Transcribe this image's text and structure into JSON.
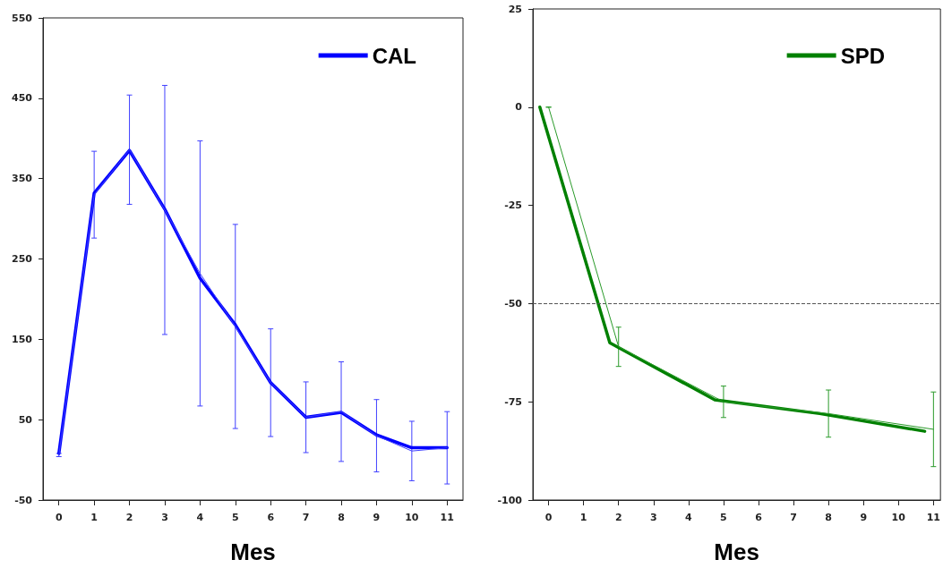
{
  "chart_data": [
    {
      "type": "line",
      "xlabel": "Mes",
      "xlim": [
        -0.45,
        11.45
      ],
      "xticks": [
        0,
        1,
        2,
        3,
        4,
        5,
        6,
        7,
        8,
        9,
        10,
        11
      ],
      "ylim": [
        -50,
        550
      ],
      "yticks": [
        -50,
        50,
        150,
        250,
        350,
        450,
        550
      ],
      "grid": false,
      "legend": "top right",
      "marker": "none",
      "line_style": "solid",
      "series": [
        {
          "name": "CAL",
          "color": "#0000ff",
          "x": [
            0,
            1,
            2,
            3,
            4,
            5,
            6,
            7,
            8,
            9,
            10,
            11
          ],
          "values": [
            8,
            332,
            385,
            312,
            226,
            168,
            96,
            53,
            59,
            31,
            15,
            15
          ]
        },
        {
          "color": "#4040ff",
          "x": [
            0,
            1,
            2,
            3,
            4,
            5,
            6,
            7,
            8,
            9,
            10,
            11
          ],
          "values": [
            6,
            330,
            386,
            311,
            232,
            166,
            96,
            53,
            60,
            30,
            11,
            15
          ],
          "errors": [
            2,
            54,
            68,
            155,
            165,
            127,
            67,
            44,
            62,
            45,
            37,
            45
          ]
        }
      ]
    },
    {
      "type": "line",
      "xlabel": "Mes",
      "xlim": [
        -0.45,
        11.2
      ],
      "xticks": [
        0,
        1,
        2,
        3,
        4,
        5,
        6,
        7,
        8,
        9,
        10,
        11
      ],
      "ylim": [
        -100,
        25
      ],
      "yticks": [
        -100,
        -75,
        -50,
        -25,
        0,
        25
      ],
      "grid": false,
      "legend": "top right",
      "marker": "none",
      "line_style": "solid",
      "ref_lines": [
        {
          "axis": "y",
          "value": -50,
          "color": "#555555",
          "line_style": "dashed"
        }
      ],
      "series": [
        {
          "name": "SPD",
          "color": "#008000",
          "x": [
            -0.25,
            1.75,
            4.75,
            7.75,
            10.75
          ],
          "values": [
            0,
            -60,
            -74.5,
            -78,
            -82.5
          ]
        },
        {
          "color": "#2a9a2a",
          "x": [
            0,
            2,
            5,
            8,
            11
          ],
          "values": [
            0,
            -61,
            -75,
            -78,
            -82
          ],
          "errors": [
            0,
            5,
            4,
            6,
            9.5
          ]
        }
      ]
    }
  ]
}
